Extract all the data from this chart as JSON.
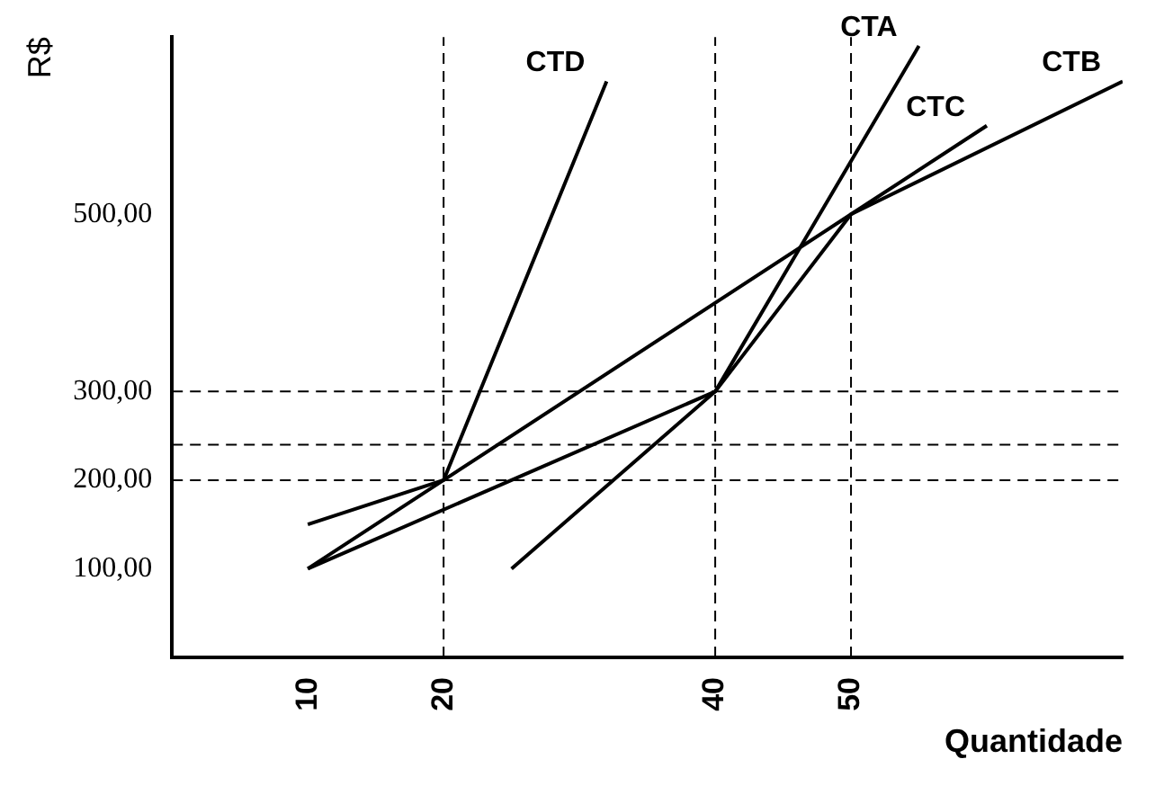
{
  "chart_data": {
    "type": "line",
    "xlabel": "Quantidade",
    "ylabel": "R$",
    "xlim": [
      0,
      70
    ],
    "ylim": [
      0,
      700
    ],
    "xticks": [
      10,
      20,
      40,
      50
    ],
    "yticks": [
      {
        "value": 100,
        "label": "100,00"
      },
      {
        "value": 200,
        "label": "200,00"
      },
      {
        "value": 300,
        "label": "300,00"
      },
      {
        "value": 500,
        "label": "500,00"
      }
    ],
    "series": [
      {
        "name": "CTD",
        "color": "#000000",
        "x": [
          10,
          20,
          32
        ],
        "values": [
          100,
          200,
          650
        ]
      },
      {
        "name": "CTA",
        "color": "#000000",
        "x": [
          25,
          40,
          55
        ],
        "values": [
          100,
          300,
          690
        ]
      },
      {
        "name": "CTC",
        "color": "#000000",
        "x": [
          10,
          40,
          50,
          60
        ],
        "values": [
          100,
          300,
          500,
          600
        ]
      },
      {
        "name": "CTB",
        "color": "#000000",
        "x": [
          10,
          20,
          50,
          70
        ],
        "values": [
          150,
          200,
          500,
          650
        ]
      }
    ],
    "ref_lines": [
      {
        "axis": "y",
        "value": 300,
        "line_style": "dashed"
      },
      {
        "axis": "y",
        "value": 240,
        "line_style": "dashed"
      },
      {
        "axis": "y",
        "value": 200,
        "line_style": "dashed"
      },
      {
        "axis": "x",
        "value": 20,
        "line_style": "dashed"
      },
      {
        "axis": "x",
        "value": 40,
        "line_style": "dashed"
      },
      {
        "axis": "x",
        "value": 50,
        "line_style": "dashed"
      }
    ],
    "grid": false,
    "legend": false,
    "marker": "none",
    "line_style": "solid"
  }
}
